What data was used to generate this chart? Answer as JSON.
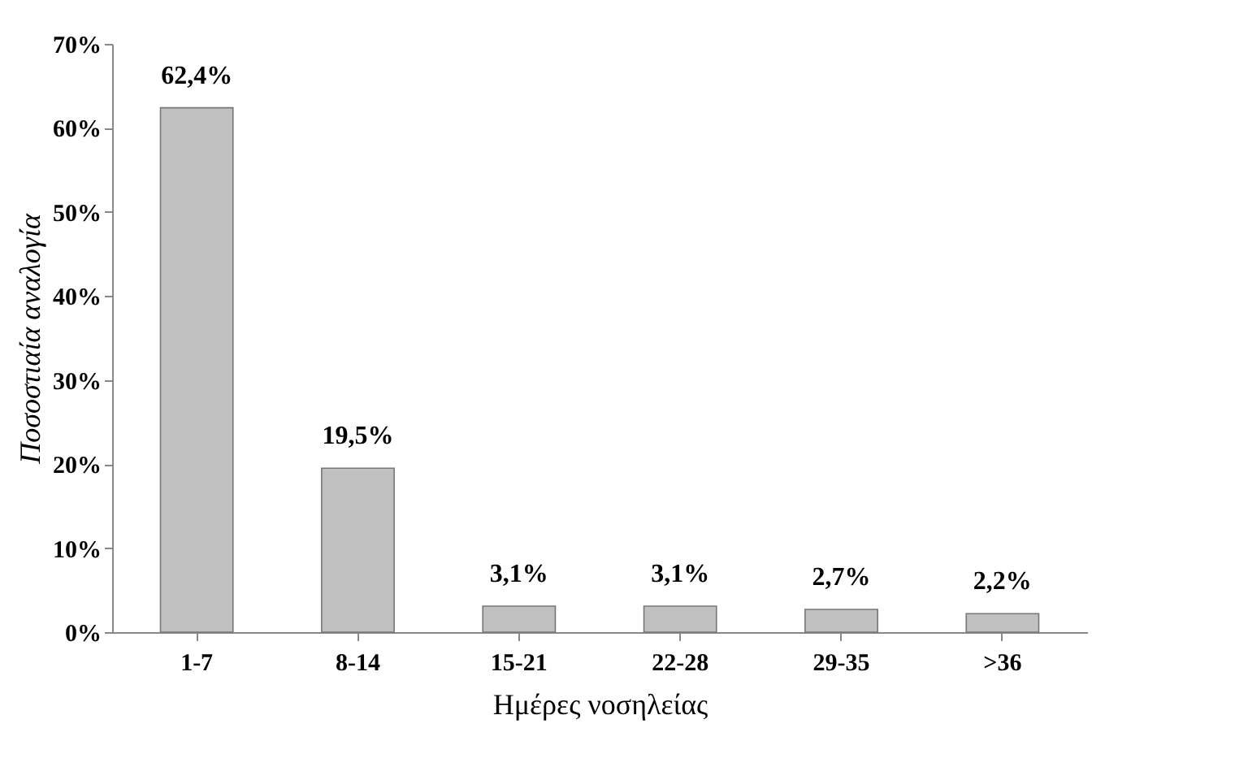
{
  "chart_data": {
    "type": "bar",
    "xlabel": "Ημέρες νοσηλείας",
    "ylabel": "Ποσοστιαία αναλογία",
    "categories": [
      "1-7",
      "8-14",
      "15-21",
      "22-28",
      "29-35",
      ">36"
    ],
    "values": [
      62.4,
      19.5,
      3.1,
      3.1,
      2.7,
      2.2
    ],
    "value_labels": [
      "62,4%",
      "19,5%",
      "3,1%",
      "3,1%",
      "2,7%",
      "2,2%"
    ],
    "color": "#c0c0c0",
    "ylim": [
      0,
      70
    ],
    "yticks": [
      {
        "value": 0,
        "label": "0%"
      },
      {
        "value": 10,
        "label": "10%"
      },
      {
        "value": 20,
        "label": "20%"
      },
      {
        "value": 30,
        "label": "30%"
      },
      {
        "value": 40,
        "label": "40%"
      },
      {
        "value": 50,
        "label": "50%"
      },
      {
        "value": 60,
        "label": "60%"
      },
      {
        "value": 70,
        "label": "70%"
      }
    ],
    "grid": false
  }
}
